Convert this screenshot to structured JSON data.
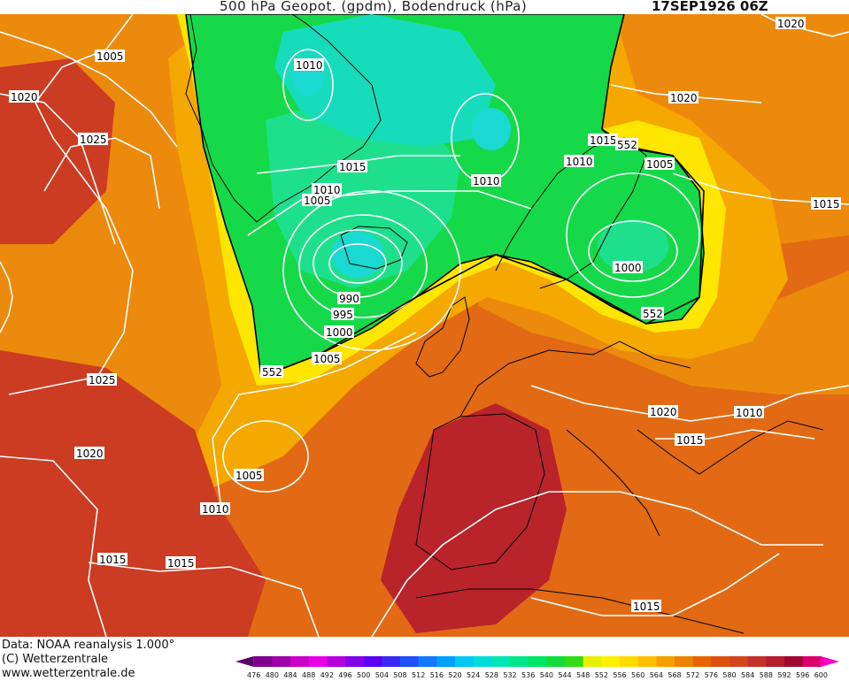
{
  "title": {
    "main": "500 hPa Geopot. (gpdm), Bodendruck (hPa)",
    "date": "17SEP1926 06Z"
  },
  "footer": {
    "data_source": "Data: NOAA reanalysis 1.000°",
    "copyright": "(C) Wetterzentrale",
    "website": "www.wetterzentrale.de"
  },
  "colorbar": {
    "levels": [
      "476",
      "480",
      "484",
      "488",
      "492",
      "496",
      "500",
      "504",
      "508",
      "512",
      "516",
      "520",
      "524",
      "528",
      "532",
      "536",
      "540",
      "544",
      "548",
      "552",
      "556",
      "560",
      "564",
      "568",
      "572",
      "576",
      "580",
      "584",
      "588",
      "592",
      "596",
      "600"
    ],
    "colors": [
      "#5a006e",
      "#7d008c",
      "#a000aa",
      "#c800c8",
      "#e600e6",
      "#b400dc",
      "#8200e6",
      "#5a00f0",
      "#3c28f5",
      "#1e50ff",
      "#1478ff",
      "#00a0ff",
      "#00c8f0",
      "#00dcdc",
      "#00e6b4",
      "#00e68c",
      "#00e664",
      "#14dc3c",
      "#32dc14",
      "#e6f000",
      "#fff000",
      "#ffdc00",
      "#ffbe00",
      "#f5a000",
      "#eb8200",
      "#e66400",
      "#dc5014",
      "#d2461e",
      "#c33228",
      "#b41e2d",
      "#a00a32",
      "#dc006e",
      "#ff00c8"
    ],
    "legend_colors": {
      "cold_core": "#00dcdc",
      "trough": "#00e664",
      "boundary_552": "#e6f000",
      "ridge": "#eb8200",
      "warm_core": "#b41e2d"
    }
  },
  "isobars": [
    "990",
    "995",
    "1000",
    "1005",
    "1010",
    "1015",
    "1020",
    "1025"
  ],
  "contour_labels": [
    {
      "text": "1005"
    },
    {
      "text": "1020"
    },
    {
      "text": "1025"
    },
    {
      "text": "1010"
    },
    {
      "text": "1015"
    },
    {
      "text": "1010"
    },
    {
      "text": "1005"
    },
    {
      "text": "990"
    },
    {
      "text": "995"
    },
    {
      "text": "1000"
    },
    {
      "text": "1005"
    },
    {
      "text": "552"
    },
    {
      "text": "1025"
    },
    {
      "text": "1020"
    },
    {
      "text": "1005"
    },
    {
      "text": "1010"
    },
    {
      "text": "1015"
    },
    {
      "text": "1015"
    },
    {
      "text": "1010"
    },
    {
      "text": "1015"
    },
    {
      "text": "552"
    },
    {
      "text": "1010"
    },
    {
      "text": "1005"
    },
    {
      "text": "1000"
    },
    {
      "text": "552"
    },
    {
      "text": "1020"
    },
    {
      "text": "1020"
    },
    {
      "text": "1015"
    },
    {
      "text": "1020"
    },
    {
      "text": "1015"
    },
    {
      "text": "1010"
    },
    {
      "text": "1015"
    }
  ]
}
